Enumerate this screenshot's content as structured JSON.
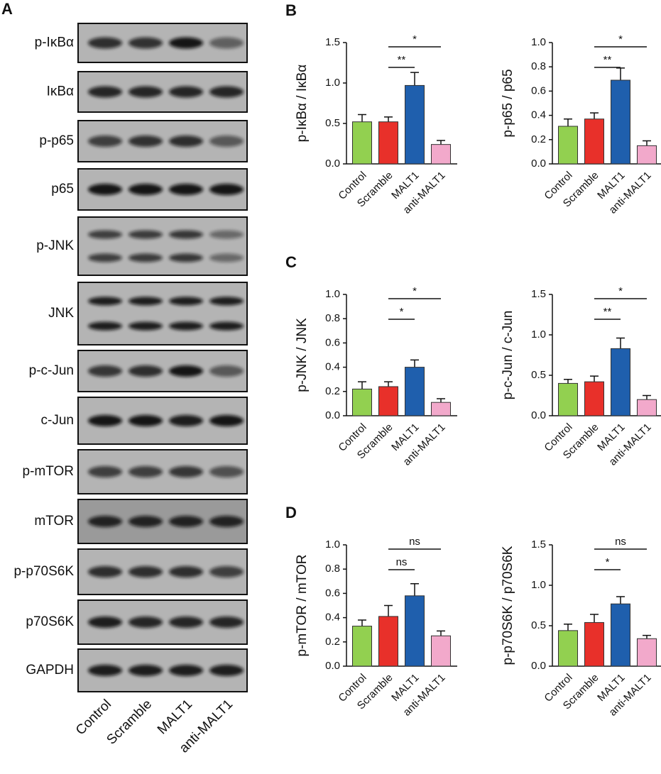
{
  "blot": {
    "label": "A",
    "rows": [
      "p-IκBα",
      "IκBα",
      "p-p65",
      "p65",
      "p-JNK",
      "JNK",
      "p-c-Jun",
      "c-Jun",
      "p-mTOR",
      "mTOR",
      "p-p70S6K",
      "p70S6K",
      "GAPDH"
    ],
    "lanes": [
      "Control",
      "Scramble",
      "MALT1",
      "anti-MALT1"
    ]
  },
  "chart_data": [
    {
      "type": "bar",
      "panel": "B",
      "ylabel": "p-IκBα / IκBα",
      "categories": [
        "Control",
        "Scramble",
        "MALT1",
        "anti-MALT1"
      ],
      "values": [
        0.52,
        0.52,
        0.97,
        0.24
      ],
      "errors": [
        0.09,
        0.06,
        0.16,
        0.05
      ],
      "colors": [
        "#92d050",
        "#e8302a",
        "#1f5fad",
        "#f2a9cb"
      ],
      "ylim": [
        0,
        1.5
      ],
      "yticks": [
        {
          "value": 0,
          "label": "0.0"
        },
        0.5,
        {
          "value": 1,
          "label": "1.0"
        },
        1.5
      ],
      "significance": [
        {
          "pair": [
            1,
            2
          ],
          "label": "**"
        },
        {
          "pair": [
            1,
            3
          ],
          "label": "*"
        }
      ]
    },
    {
      "type": "bar",
      "ylabel": "p-p65 / p65",
      "categories": [
        "Control",
        "Scramble",
        "MALT1",
        "anti-MALT1"
      ],
      "values": [
        0.31,
        0.37,
        0.69,
        0.15
      ],
      "errors": [
        0.06,
        0.05,
        0.1,
        0.04
      ],
      "colors": [
        "#92d050",
        "#e8302a",
        "#1f5fad",
        "#f2a9cb"
      ],
      "ylim": [
        0,
        1
      ],
      "yticks": [
        {
          "value": 0,
          "label": "0.0"
        },
        0.2,
        0.4,
        0.6,
        0.8,
        {
          "value": 1,
          "label": "1.0"
        }
      ],
      "significance": [
        {
          "pair": [
            1,
            2
          ],
          "label": "**"
        },
        {
          "pair": [
            1,
            3
          ],
          "label": "*"
        }
      ]
    },
    {
      "type": "bar",
      "panel": "C",
      "ylabel": "p-JNK / JNK",
      "categories": [
        "Control",
        "Scramble",
        "MALT1",
        "anti-MALT1"
      ],
      "values": [
        0.22,
        0.24,
        0.4,
        0.11
      ],
      "errors": [
        0.06,
        0.04,
        0.06,
        0.03
      ],
      "colors": [
        "#92d050",
        "#e8302a",
        "#1f5fad",
        "#f2a9cb"
      ],
      "ylim": [
        0,
        1
      ],
      "yticks": [
        {
          "value": 0,
          "label": "0.0"
        },
        0.2,
        0.4,
        0.6,
        0.8,
        {
          "value": 1,
          "label": "1.0"
        }
      ],
      "significance": [
        {
          "pair": [
            1,
            2
          ],
          "label": "*"
        },
        {
          "pair": [
            1,
            3
          ],
          "label": "*"
        }
      ]
    },
    {
      "type": "bar",
      "ylabel": "p-c-Jun / c-Jun",
      "categories": [
        "Control",
        "Scramble",
        "MALT1",
        "anti-MALT1"
      ],
      "values": [
        0.4,
        0.42,
        0.83,
        0.2
      ],
      "errors": [
        0.05,
        0.07,
        0.13,
        0.05
      ],
      "colors": [
        "#92d050",
        "#e8302a",
        "#1f5fad",
        "#f2a9cb"
      ],
      "ylim": [
        0,
        1.5
      ],
      "yticks": [
        {
          "value": 0,
          "label": "0.0"
        },
        0.5,
        {
          "value": 1,
          "label": "1.0"
        },
        1.5
      ],
      "significance": [
        {
          "pair": [
            1,
            2
          ],
          "label": "**"
        },
        {
          "pair": [
            1,
            3
          ],
          "label": "*"
        }
      ]
    },
    {
      "type": "bar",
      "panel": "D",
      "ylabel": "p-mTOR / mTOR",
      "categories": [
        "Control",
        "Scramble",
        "MALT1",
        "anti-MALT1"
      ],
      "values": [
        0.33,
        0.41,
        0.58,
        0.25
      ],
      "errors": [
        0.05,
        0.09,
        0.1,
        0.04
      ],
      "colors": [
        "#92d050",
        "#e8302a",
        "#1f5fad",
        "#f2a9cb"
      ],
      "ylim": [
        0,
        1
      ],
      "yticks": [
        {
          "value": 0,
          "label": "0.0"
        },
        0.2,
        0.4,
        0.6,
        0.8,
        {
          "value": 1,
          "label": "1.0"
        }
      ],
      "significance": [
        {
          "pair": [
            1,
            2
          ],
          "label": "ns"
        },
        {
          "pair": [
            1,
            3
          ],
          "label": "ns"
        }
      ]
    },
    {
      "type": "bar",
      "ylabel": "p-p70S6K / p70S6K",
      "categories": [
        "Control",
        "Scramble",
        "MALT1",
        "anti-MALT1"
      ],
      "values": [
        0.44,
        0.54,
        0.77,
        0.34
      ],
      "errors": [
        0.08,
        0.1,
        0.09,
        0.04
      ],
      "colors": [
        "#92d050",
        "#e8302a",
        "#1f5fad",
        "#f2a9cb"
      ],
      "ylim": [
        0,
        1.5
      ],
      "yticks": [
        {
          "value": 0,
          "label": "0.0"
        },
        0.5,
        {
          "value": 1,
          "label": "1.0"
        },
        1.5
      ],
      "significance": [
        {
          "pair": [
            1,
            2
          ],
          "label": "*"
        },
        {
          "pair": [
            1,
            3
          ],
          "label": "ns"
        }
      ]
    }
  ]
}
